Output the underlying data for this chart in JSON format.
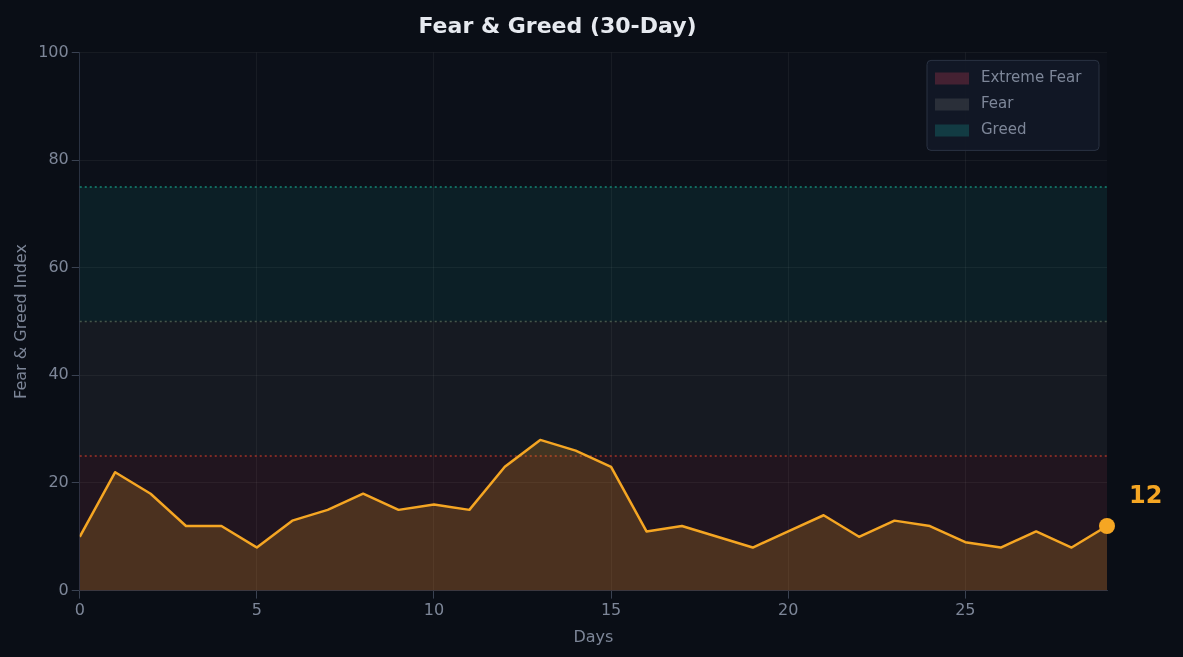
{
  "chart_data": {
    "type": "area",
    "title": "Fear & Greed (30-Day)",
    "xlabel": "Days",
    "ylabel": "Fear & Greed Index",
    "x": [
      0,
      1,
      2,
      3,
      4,
      5,
      6,
      7,
      8,
      9,
      10,
      11,
      12,
      13,
      14,
      15,
      16,
      17,
      18,
      19,
      20,
      21,
      22,
      23,
      24,
      25,
      26,
      27,
      28,
      29
    ],
    "series": [
      {
        "color": "#f5a623",
        "values": [
          10,
          22,
          18,
          12,
          12,
          8,
          13,
          15,
          18,
          15,
          16,
          15,
          23,
          28,
          26,
          23,
          11,
          12,
          10,
          8,
          11,
          14,
          10,
          13,
          12,
          9,
          8,
          11,
          8,
          12
        ]
      }
    ],
    "xlim": [
      0,
      29
    ],
    "xticks": [
      0,
      5,
      10,
      15,
      20,
      25
    ],
    "ylim": [
      0,
      100
    ],
    "yticks": [
      0,
      20,
      40,
      60,
      80,
      100
    ],
    "bands": [
      {
        "axis": "y",
        "from": 0,
        "to": 25,
        "label": "Extreme Fear",
        "color": "#e0405a"
      },
      {
        "axis": "y",
        "from": 25,
        "to": 50,
        "label": "Fear",
        "color": "#777777"
      },
      {
        "axis": "y",
        "from": 50,
        "to": 75,
        "label": "Greed",
        "color": "#18a8a0"
      }
    ],
    "ref_lines": [
      {
        "axis": "y",
        "value": 25,
        "color": "#c0392b",
        "line_style": "dotted"
      },
      {
        "axis": "y",
        "value": 50,
        "color": "#556655",
        "line_style": "dotted"
      },
      {
        "axis": "y",
        "value": 75,
        "color": "#17a589",
        "line_style": "dotted"
      }
    ],
    "annotations": [
      {
        "text": "12",
        "x": 29,
        "y": 12
      }
    ],
    "grid": true,
    "legend": "top right"
  }
}
